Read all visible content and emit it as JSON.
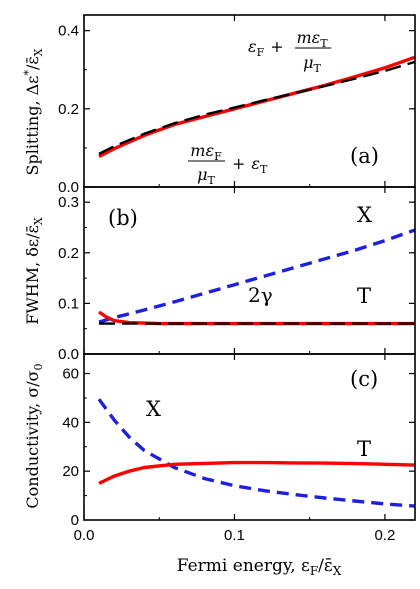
{
  "chart_data": [
    {
      "panel": "(a)",
      "type": "line",
      "ylabel": "Splitting, Δε*/ε̄X",
      "ylim": [
        0,
        0.44
      ],
      "yticks": [
        0.0,
        0.2,
        0.4
      ],
      "xlim": [
        0,
        0.22
      ],
      "series": [
        {
          "name": "εF + mεT/μT",
          "color": "#ff0000",
          "style": "solid",
          "x": [
            0.01,
            0.02,
            0.04,
            0.06,
            0.08,
            0.1,
            0.12,
            0.14,
            0.16,
            0.18,
            0.2,
            0.22
          ],
          "y": [
            0.078,
            0.098,
            0.132,
            0.16,
            0.18,
            0.2,
            0.22,
            0.24,
            0.26,
            0.282,
            0.305,
            0.332
          ]
        },
        {
          "name": "mεF/μT + εT",
          "color": "#000000",
          "style": "dashed",
          "x": [
            0.01,
            0.02,
            0.04,
            0.06,
            0.08,
            0.1,
            0.12,
            0.14,
            0.16,
            0.18,
            0.2,
            0.22
          ],
          "y": [
            0.085,
            0.104,
            0.136,
            0.163,
            0.185,
            0.203,
            0.222,
            0.24,
            0.258,
            0.277,
            0.297,
            0.32
          ]
        }
      ],
      "annotations": {
        "top_formula": {
          "a": "ε",
          "a_sub": "F",
          "plus": "+",
          "num": "mε",
          "num_sub": "T",
          "den": "μ",
          "den_sub": "T"
        },
        "bottom_formula": {
          "num": "mε",
          "num_sub": "F",
          "den": "μ",
          "den_sub": "T",
          "plus": "+",
          "b": "ε",
          "b_sub": "T"
        },
        "panel_label": "(a)"
      }
    },
    {
      "panel": "(b)",
      "type": "line",
      "ylabel": "FWHM, δε/ε̄X",
      "ylim": [
        0,
        0.33
      ],
      "yticks": [
        0.0,
        0.1,
        0.2,
        0.3
      ],
      "xlim": [
        0,
        0.22
      ],
      "series": [
        {
          "name": "X",
          "color": "#1f1fe0",
          "style": "dashed",
          "x": [
            0.01,
            0.02,
            0.04,
            0.06,
            0.08,
            0.1,
            0.12,
            0.14,
            0.16,
            0.18,
            0.2,
            0.22
          ],
          "y": [
            0.063,
            0.072,
            0.087,
            0.103,
            0.12,
            0.137,
            0.154,
            0.171,
            0.188,
            0.205,
            0.224,
            0.245
          ]
        },
        {
          "name": "T",
          "color": "#ff0000",
          "style": "solid",
          "x": [
            0.01,
            0.015,
            0.02,
            0.03,
            0.05,
            0.1,
            0.15,
            0.22
          ],
          "y": [
            0.083,
            0.073,
            0.066,
            0.062,
            0.06,
            0.06,
            0.06,
            0.06
          ]
        },
        {
          "name": "2γ",
          "color": "#000000",
          "style": "dashed",
          "x": [
            0.01,
            0.22
          ],
          "y": [
            0.06,
            0.06
          ]
        }
      ],
      "annotations": {
        "X": "X",
        "T": "T",
        "two_gamma": "2γ",
        "panel_label": "(b)"
      }
    },
    {
      "panel": "(c)",
      "type": "line",
      "xlabel": "Fermi energy, εF/ε̄X",
      "ylabel": "Conductivity, σ/σ0",
      "ylim": [
        0,
        68
      ],
      "yticks": [
        0,
        20,
        40,
        60
      ],
      "xlim": [
        0,
        0.22
      ],
      "xticks": [
        0.0,
        0.1,
        0.2
      ],
      "series": [
        {
          "name": "X",
          "color": "#1f1fe0",
          "style": "dashed",
          "x": [
            0.01,
            0.02,
            0.03,
            0.04,
            0.06,
            0.08,
            0.1,
            0.12,
            0.14,
            0.16,
            0.18,
            0.2,
            0.22
          ],
          "y": [
            49.5,
            41.0,
            34.0,
            28.5,
            21.5,
            17.0,
            14.0,
            12.0,
            10.4,
            9.0,
            7.8,
            6.6,
            5.7
          ]
        },
        {
          "name": "T",
          "color": "#ff0000",
          "style": "solid",
          "x": [
            0.01,
            0.02,
            0.03,
            0.04,
            0.06,
            0.08,
            0.1,
            0.12,
            0.14,
            0.16,
            0.18,
            0.2,
            0.22
          ],
          "y": [
            15.0,
            18.0,
            20.0,
            21.5,
            22.8,
            23.2,
            23.5,
            23.5,
            23.4,
            23.3,
            23.1,
            22.8,
            22.5
          ]
        }
      ],
      "annotations": {
        "X": "X",
        "T": "T",
        "panel_label": "(c)"
      }
    }
  ],
  "ylabels": {
    "a": {
      "main": "Splitting, Δε",
      "sup": "*",
      "rest": "/ε̄",
      "sub": "X"
    },
    "b": {
      "main": "FWHM, δε/ε̄",
      "sub": "X"
    },
    "c": {
      "main": "Conductivity, σ/σ",
      "sub": "0"
    }
  },
  "xlabel": {
    "main": "Fermi energy, ε",
    "sub1": "F",
    "mid": "/ε̄",
    "sub2": "X"
  },
  "tick_labels": {
    "a": [
      "0.0",
      "0.2",
      "0.4"
    ],
    "b": [
      "0.0",
      "0.1",
      "0.2",
      "0.3"
    ],
    "c": [
      "0",
      "20",
      "40",
      "60"
    ],
    "x": [
      "0.0",
      "0.1",
      "0.2"
    ]
  }
}
